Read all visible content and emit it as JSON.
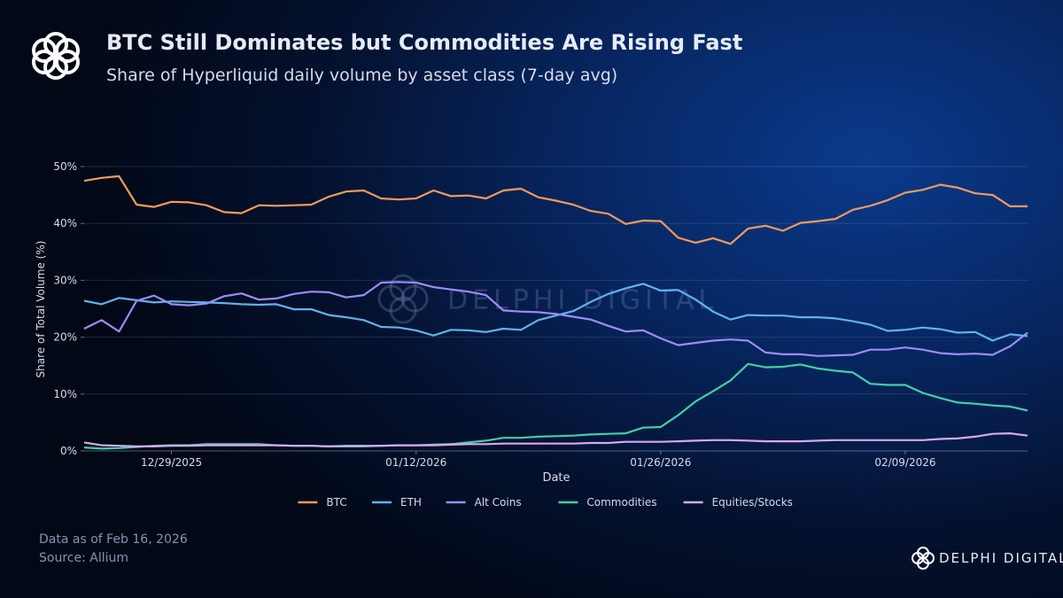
{
  "chart_data": {
    "type": "line",
    "title": "BTC Still Dominates but Commodities Are Rising Fast",
    "subtitle": "Share of Hyperliquid daily volume by asset class (7-day avg)",
    "y_label": "Share of Total Volume (%)",
    "x_label": "Date",
    "footnote": "Data as of Feb 16, 2026",
    "source": "Source: Allium",
    "brand": "DELPHI DIGITAL",
    "watermark": "DELPHI DIGITAL",
    "x": [
      "12/24/2025",
      "12/25/2025",
      "12/26/2025",
      "12/27/2025",
      "12/28/2025",
      "12/29/2025",
      "12/30/2025",
      "12/31/2025",
      "01/01/2026",
      "01/02/2026",
      "01/03/2026",
      "01/04/2026",
      "01/05/2026",
      "01/06/2026",
      "01/07/2026",
      "01/08/2026",
      "01/09/2026",
      "01/10/2026",
      "01/11/2026",
      "01/12/2026",
      "01/13/2026",
      "01/14/2026",
      "01/15/2026",
      "01/16/2026",
      "01/17/2026",
      "01/18/2026",
      "01/19/2026",
      "01/20/2026",
      "01/21/2026",
      "01/22/2026",
      "01/23/2026",
      "01/24/2026",
      "01/25/2026",
      "01/26/2026",
      "01/27/2026",
      "01/28/2026",
      "01/29/2026",
      "01/30/2026",
      "01/31/2026",
      "02/01/2026",
      "02/02/2026",
      "02/03/2026",
      "02/04/2026",
      "02/05/2026",
      "02/06/2026",
      "02/07/2026",
      "02/08/2026",
      "02/09/2026",
      "02/10/2026",
      "02/11/2026",
      "02/12/2026",
      "02/13/2026",
      "02/14/2026",
      "02/15/2026",
      "02/16/2026"
    ],
    "xlim": [
      "12/24/2025",
      "02/16/2026"
    ],
    "xticks": [
      "12/29/2025",
      "01/12/2026",
      "01/26/2026",
      "02/09/2026"
    ],
    "ylim": [
      0,
      50
    ],
    "yticks": [
      {
        "value": 0,
        "label": "0%"
      },
      {
        "value": 10,
        "label": "10%"
      },
      {
        "value": 20,
        "label": "20%"
      },
      {
        "value": 30,
        "label": "30%"
      },
      {
        "value": 40,
        "label": "40%"
      },
      {
        "value": 50,
        "label": "50%"
      }
    ],
    "grid": true,
    "legend": "bottom",
    "series": [
      {
        "name": "BTC",
        "color": "#f39a5c",
        "values": [
          47.5,
          48,
          48.3,
          43.3,
          42.9,
          43.8,
          43.7,
          43.2,
          42,
          41.8,
          43.2,
          43.1,
          43.2,
          43.3,
          44.7,
          45.6,
          45.8,
          44.4,
          44.2,
          44.4,
          45.8,
          44.8,
          44.9,
          44.4,
          45.8,
          46.1,
          44.6,
          44,
          43.3,
          42.2,
          41.7,
          39.9,
          40.5,
          40.4,
          37.5,
          36.6,
          37.4,
          36.4,
          39.1,
          39.6,
          38.7,
          40.1,
          40.4,
          40.8,
          42.4,
          43.1,
          44.1,
          45.4,
          45.9,
          46.8,
          46.3,
          45.3,
          45,
          43,
          43
        ]
      },
      {
        "name": "ETH",
        "color": "#5fb3ee",
        "values": [
          26.4,
          25.8,
          26.9,
          26.5,
          26.1,
          26.3,
          26.2,
          26.1,
          26,
          25.8,
          25.7,
          25.8,
          24.9,
          24.9,
          23.9,
          23.5,
          23,
          21.8,
          21.7,
          21.2,
          20.3,
          21.3,
          21.2,
          20.9,
          21.5,
          21.3,
          23,
          23.8,
          24.6,
          26.2,
          27.6,
          28.6,
          29.4,
          28.2,
          28.3,
          26.6,
          24.5,
          23.1,
          23.9,
          23.8,
          23.8,
          23.5,
          23.5,
          23.3,
          22.8,
          22.2,
          21.1,
          21.3,
          21.7,
          21.4,
          20.8,
          20.9,
          19.4,
          20.5,
          20.2
        ]
      },
      {
        "name": "Alt Coins",
        "color": "#9d8cf5",
        "values": [
          21.5,
          23,
          21,
          26.4,
          27.3,
          25.8,
          25.6,
          25.9,
          27.2,
          27.7,
          26.6,
          26.8,
          27.6,
          28,
          27.9,
          27,
          27.4,
          29.6,
          29.7,
          29.6,
          28.8,
          28.4,
          28,
          27.4,
          24.7,
          24.5,
          24.4,
          24.1,
          23.6,
          23.1,
          22,
          21,
          21.2,
          19.8,
          18.6,
          19,
          19.4,
          19.6,
          19.4,
          17.3,
          17,
          17,
          16.7,
          16.8,
          16.9,
          17.8,
          17.8,
          18.2,
          17.8,
          17.2,
          17,
          17.1,
          16.9,
          18.4,
          20.8
        ]
      },
      {
        "name": "Commodities",
        "color": "#3fd0a8",
        "values": [
          0.6,
          0.4,
          0.5,
          0.7,
          0.9,
          1,
          1,
          1.2,
          1.2,
          1.2,
          1.2,
          1,
          0.9,
          0.9,
          0.8,
          0.8,
          0.8,
          0.9,
          1,
          1,
          1.1,
          1.2,
          1.5,
          1.8,
          2.3,
          2.3,
          2.5,
          2.6,
          2.7,
          2.9,
          3,
          3.1,
          4.1,
          4.2,
          6.3,
          8.7,
          10.5,
          12.4,
          15.3,
          14.7,
          14.8,
          15.2,
          14.5,
          14.1,
          13.8,
          11.8,
          11.6,
          11.6,
          10.2,
          9.3,
          8.5,
          8.3,
          8,
          7.8,
          7.1
        ]
      },
      {
        "name": "Equities/Stocks",
        "color": "#d7a8f0",
        "values": [
          1.5,
          1,
          0.9,
          0.8,
          0.8,
          0.9,
          0.9,
          1,
          1,
          1,
          1,
          1,
          0.9,
          0.9,
          0.8,
          0.9,
          0.9,
          0.9,
          1,
          1,
          1,
          1.1,
          1.2,
          1.2,
          1.3,
          1.3,
          1.3,
          1.3,
          1.3,
          1.4,
          1.4,
          1.6,
          1.6,
          1.6,
          1.7,
          1.8,
          1.9,
          1.9,
          1.8,
          1.7,
          1.7,
          1.7,
          1.8,
          1.9,
          1.9,
          1.9,
          1.9,
          1.9,
          1.9,
          2.1,
          2.2,
          2.5,
          3,
          3.1,
          2.7
        ]
      }
    ]
  }
}
